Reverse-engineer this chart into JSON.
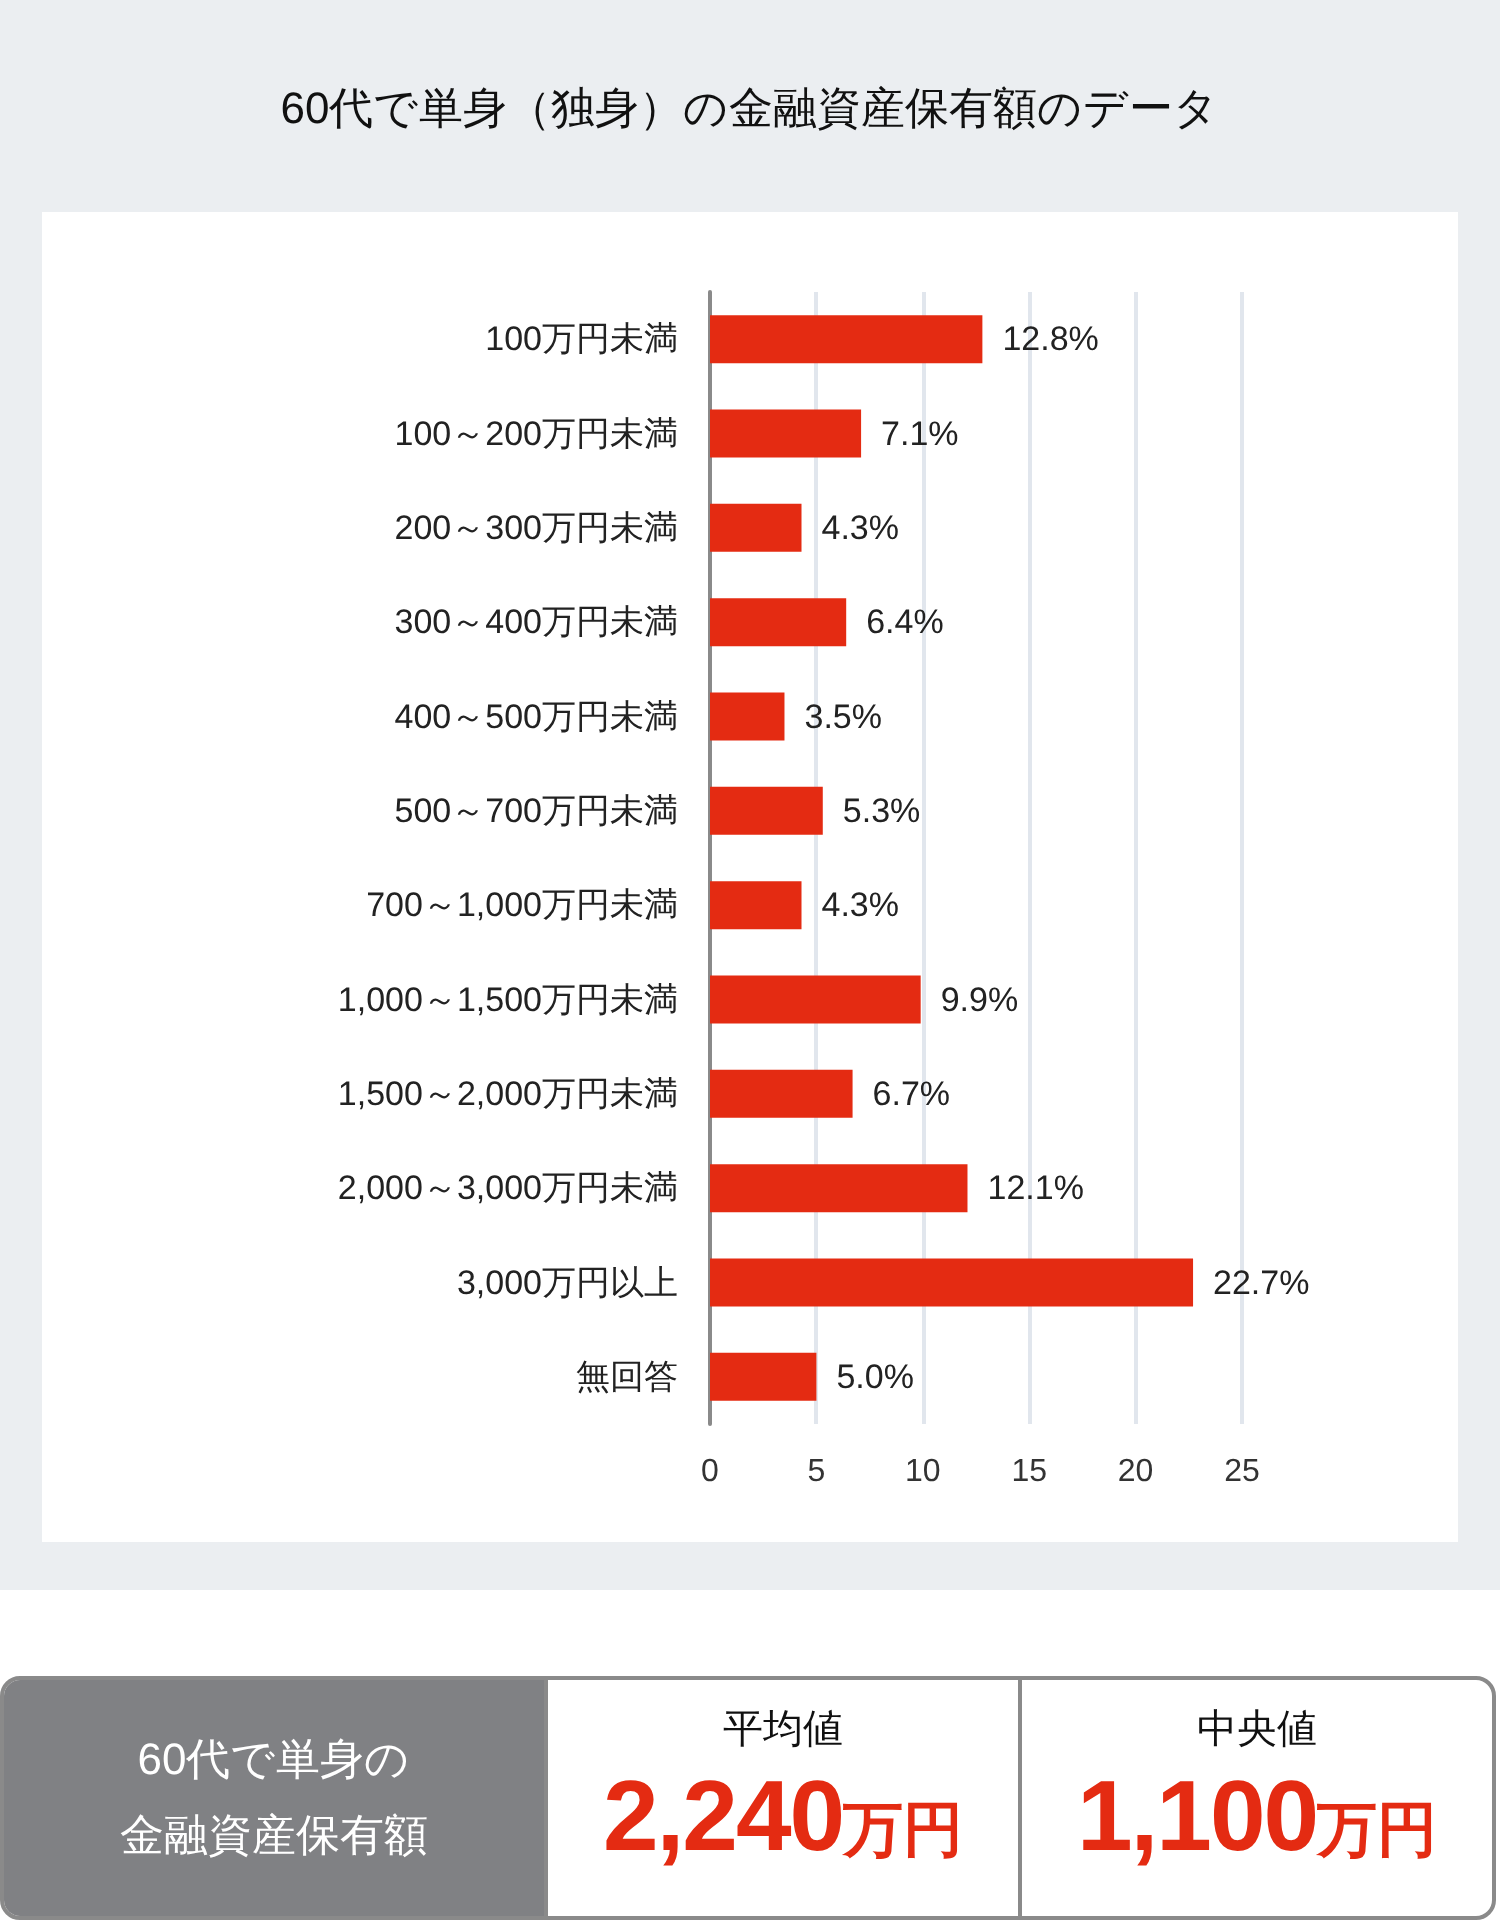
{
  "chart_data": {
    "type": "bar",
    "orientation": "horizontal",
    "title": "60代で単身（独身）の金融資産保有額のデータ",
    "categories": [
      "100万円未満",
      "100～200万円未満",
      "200～300万円未満",
      "300～400万円未満",
      "400～500万円未満",
      "500～700万円未満",
      "700～1,000万円未満",
      "1,000～1,500万円未満",
      "1,500～2,000万円未満",
      "2,000～3,000万円未満",
      "3,000万円以上",
      "無回答"
    ],
    "values": [
      12.8,
      7.1,
      4.3,
      6.4,
      3.5,
      5.3,
      4.3,
      9.9,
      6.7,
      12.1,
      22.7,
      5.0
    ],
    "value_labels": [
      "12.8%",
      "7.1%",
      "4.3%",
      "6.4%",
      "3.5%",
      "5.3%",
      "4.3%",
      "9.9%",
      "6.7%",
      "12.1%",
      "22.7%",
      "5.0%"
    ],
    "color": "#e42b12",
    "xlim": [
      0,
      25
    ],
    "xticks": [
      0,
      5,
      10,
      15,
      20,
      25
    ],
    "grid": "x",
    "annotations": [
      "60代で単身の金融資産保有額",
      "平均値",
      "2,240万円",
      "中央値",
      "1,100万円"
    ]
  }
}
